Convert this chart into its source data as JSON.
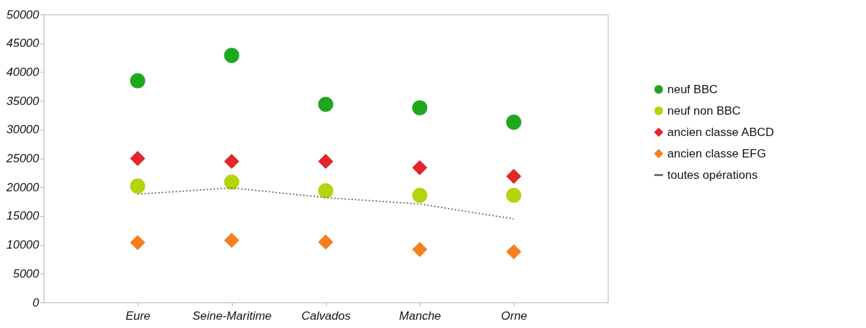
{
  "chart_data": {
    "type": "scatter",
    "categories": [
      "Eure",
      "Seine-Maritime",
      "Calvados",
      "Manche",
      "Orne"
    ],
    "ylim": [
      0,
      50000
    ],
    "yticks": [
      0,
      5000,
      10000,
      15000,
      20000,
      25000,
      30000,
      35000,
      40000,
      45000,
      50000
    ],
    "grid": false,
    "legend": "right",
    "series": [
      {
        "name": "neuf BBC",
        "marker": "circle",
        "color": "#1ea81e",
        "values": [
          38500,
          42900,
          34400,
          33800,
          31300
        ]
      },
      {
        "name": "neuf non BBC",
        "marker": "circle",
        "color": "#b4d40c",
        "values": [
          20200,
          20900,
          19400,
          18600,
          18600
        ]
      },
      {
        "name": "ancien classe ABCD",
        "marker": "diamond",
        "color": "#e3262a",
        "values": [
          25000,
          24500,
          24500,
          23400,
          21900
        ]
      },
      {
        "name": "ancien classe EFG",
        "marker": "diamond",
        "color": "#f57f20",
        "values": [
          10400,
          10800,
          10500,
          9200,
          8800
        ]
      },
      {
        "name": "toutes opérations",
        "type": "line",
        "line_style": "dotted",
        "color": "#6e6e6e",
        "values": [
          18800,
          19900,
          18200,
          17100,
          14500
        ]
      }
    ]
  }
}
